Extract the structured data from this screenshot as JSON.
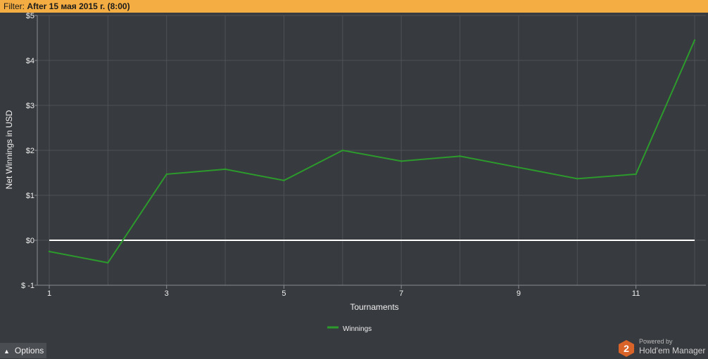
{
  "filter": {
    "label": "Filter:",
    "value": "After 15 мая 2015 г. (8:00)"
  },
  "chart_data": {
    "type": "line",
    "x": [
      1,
      2,
      3,
      4,
      5,
      6,
      7,
      8,
      9,
      10,
      11,
      12
    ],
    "series": [
      {
        "name": "Winnings",
        "color": "#2c9a2c",
        "values": [
          -0.25,
          -0.5,
          1.47,
          1.58,
          1.33,
          2.0,
          1.76,
          1.87,
          1.62,
          1.37,
          1.47,
          4.45
        ]
      }
    ],
    "x_ticks": [
      1,
      3,
      5,
      7,
      9,
      11
    ],
    "x_tick_labels": [
      "1",
      "3",
      "5",
      "7",
      "9",
      "11"
    ],
    "y_ticks": [
      -1,
      0,
      1,
      2,
      3,
      4,
      5
    ],
    "y_tick_labels": [
      "$ -1",
      "$0",
      "$1",
      "$2",
      "$3",
      "$4",
      "$5"
    ],
    "xlim": [
      1,
      12
    ],
    "ylim": [
      -1,
      5
    ],
    "xlabel": "Tournaments",
    "ylabel": "Net Winnings in USD",
    "zero_line_color": "#ffffff",
    "grid": true,
    "legend_position": "bottom-center"
  },
  "options": {
    "label": "Options",
    "icon": "chevron-up-icon"
  },
  "branding": {
    "powered_by": "Powered by",
    "product": "Hold'em Manager",
    "version_badge": "2",
    "badge_color": "#d9642a"
  }
}
